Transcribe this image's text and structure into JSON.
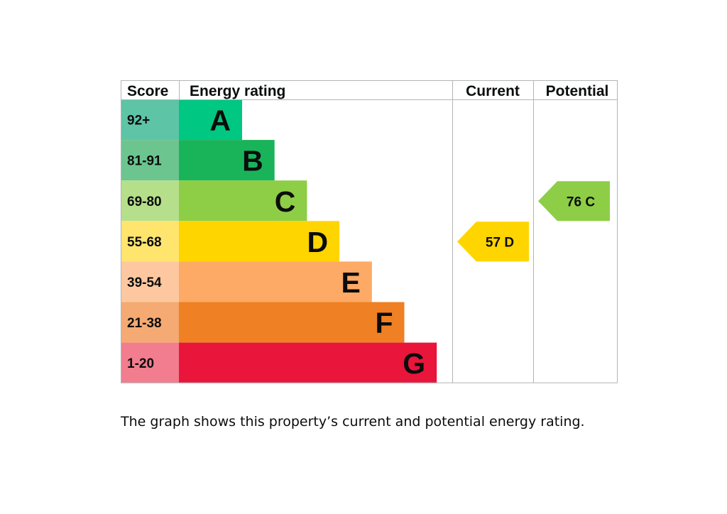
{
  "chart_data": {
    "type": "bar",
    "headers": {
      "score": "Score",
      "energy_rating": "Energy rating",
      "current": "Current",
      "potential": "Potential"
    },
    "bands": [
      {
        "letter": "A",
        "range": "92+",
        "min": 92,
        "max": 100,
        "color": "#00c781",
        "score_color": "#5ec4a6"
      },
      {
        "letter": "B",
        "range": "81-91",
        "min": 81,
        "max": 91,
        "color": "#19b459",
        "score_color": "#6cc58f"
      },
      {
        "letter": "C",
        "range": "69-80",
        "min": 69,
        "max": 80,
        "color": "#8dce46",
        "score_color": "#b6df8b"
      },
      {
        "letter": "D",
        "range": "55-68",
        "min": 55,
        "max": 68,
        "color": "#ffd500",
        "score_color": "#ffe56e"
      },
      {
        "letter": "E",
        "range": "39-54",
        "min": 39,
        "max": 54,
        "color": "#fcaa65",
        "score_color": "#fdc8a0"
      },
      {
        "letter": "F",
        "range": "21-38",
        "min": 21,
        "max": 38,
        "color": "#ef8023",
        "score_color": "#f4aa72"
      },
      {
        "letter": "G",
        "range": "1-20",
        "min": 1,
        "max": 20,
        "color": "#e9153b",
        "score_color": "#f27d8e"
      }
    ],
    "current": {
      "score": 57,
      "letter": "D",
      "label": "57  D",
      "color": "#ffd500"
    },
    "potential": {
      "score": 76,
      "letter": "C",
      "label": "76  C",
      "color": "#8dce46"
    }
  },
  "caption": "The graph shows this property’s current and potential energy rating."
}
